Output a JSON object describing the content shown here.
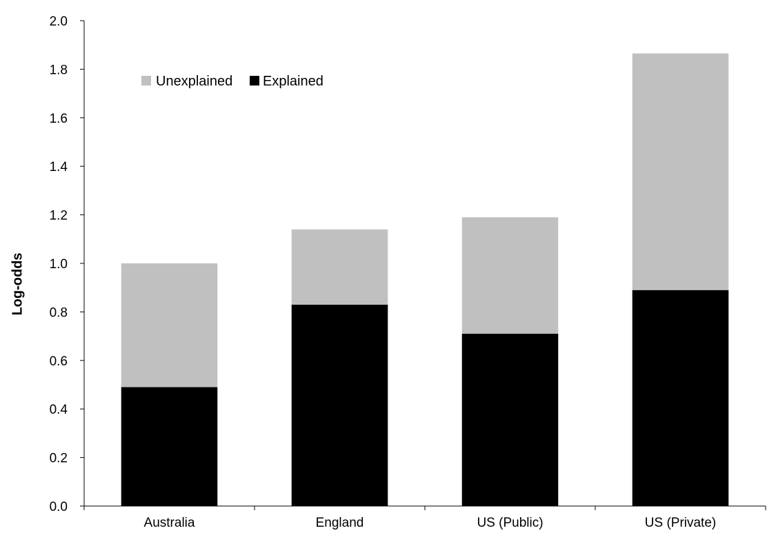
{
  "chart_data": {
    "type": "bar",
    "stacked": true,
    "title": "",
    "xlabel": "",
    "ylabel": "Log-odds",
    "ylim": [
      0,
      2.0
    ],
    "yticks": [
      "0.0",
      "0.2",
      "0.4",
      "0.6",
      "0.8",
      "1.0",
      "1.2",
      "1.4",
      "1.6",
      "1.8",
      "2.0"
    ],
    "categories": [
      "Australia",
      "England",
      "US (Public)",
      "US (Private)"
    ],
    "series": [
      {
        "name": "Explained",
        "color": "#000000",
        "values": [
          0.49,
          0.83,
          0.71,
          0.89
        ]
      },
      {
        "name": "Unexplained",
        "color": "#c0c0c0",
        "values": [
          0.51,
          0.31,
          0.48,
          0.975
        ]
      }
    ],
    "legend": {
      "position": "top-left",
      "entries": [
        "Unexplained",
        "Explained"
      ]
    },
    "grid": false
  }
}
